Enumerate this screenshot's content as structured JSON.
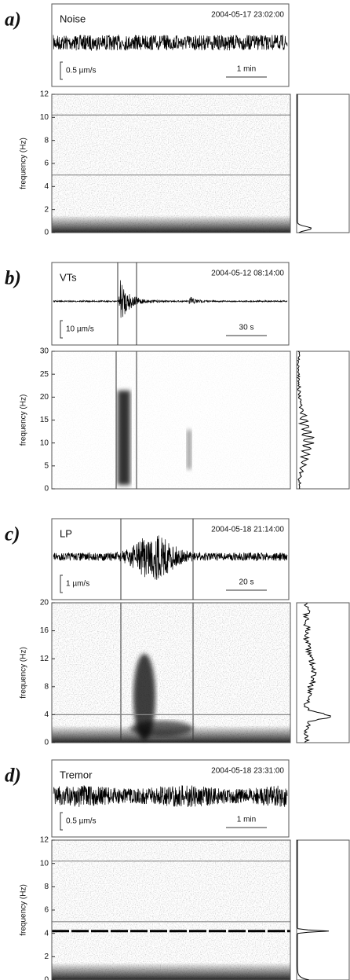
{
  "chart_data": [
    {
      "type": "spectrogram",
      "panel_label": "a)",
      "title": "Noise",
      "timestamp": "2004-05-17 23:02:00",
      "amplitude_scale": "0.5 µm/s",
      "time_scale": "1 min",
      "ylabel": "frequency (Hz)",
      "ylim": [
        0,
        12
      ],
      "yticks": [
        0,
        2,
        4,
        6,
        8,
        10,
        12
      ],
      "bands": [
        10.2,
        5
      ]
    },
    {
      "type": "spectrogram",
      "panel_label": "b)",
      "title": "VTs",
      "timestamp": "2004-05-12 08:14:00",
      "amplitude_scale": "10 µm/s",
      "time_scale": "30 s",
      "ylabel": "frequency (Hz)",
      "ylim": [
        0,
        30
      ],
      "yticks": [
        0,
        5,
        10,
        15,
        20,
        25,
        30
      ],
      "bands": []
    },
    {
      "type": "spectrogram",
      "panel_label": "c)",
      "title": "LP",
      "timestamp": "2004-05-18 21:14:00",
      "amplitude_scale": "1 µm/s",
      "time_scale": "20 s",
      "ylabel": "frequency (Hz)",
      "ylim": [
        0,
        20
      ],
      "yticks": [
        0,
        4,
        8,
        12,
        16,
        20
      ],
      "bands": [
        4
      ]
    },
    {
      "type": "spectrogram",
      "panel_label": "d)",
      "title": "Tremor",
      "timestamp": "2004-05-18 23:31:00",
      "amplitude_scale": "0.5 µm/s",
      "time_scale": "1 min",
      "ylabel": "frequency (Hz)",
      "ylim": [
        0,
        12
      ],
      "yticks": [
        0,
        2,
        4,
        6,
        8,
        10,
        12
      ],
      "bands": [
        4.2,
        10.2,
        5
      ]
    }
  ]
}
